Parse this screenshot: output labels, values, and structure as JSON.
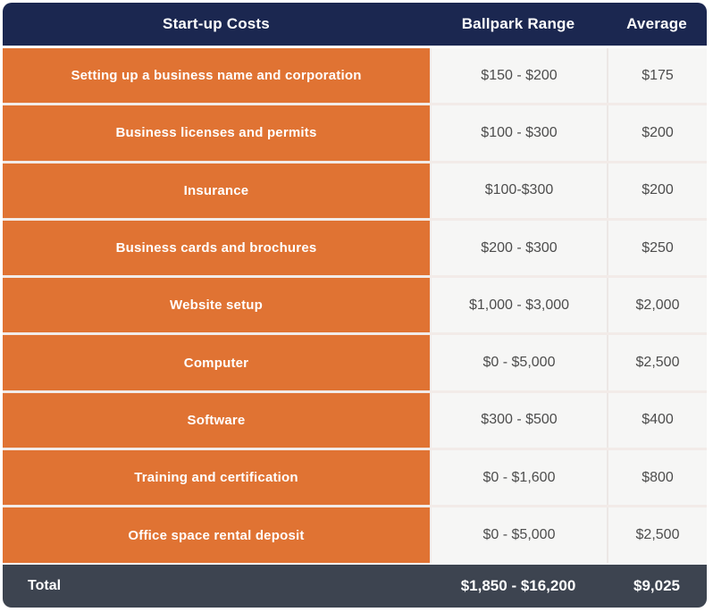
{
  "colors": {
    "header_navy": "#1b2750",
    "row_orange": "#e07333",
    "value_gray": "#f6f6f5",
    "footer_slate": "#3d4450",
    "value_text": "#4d4d4d"
  },
  "table": {
    "header": {
      "col1": "Start-up Costs",
      "col2": "Ballpark Range",
      "col3": "Average"
    },
    "rows": [
      {
        "label": "Setting up a business name and corporation",
        "range": "$150 - $200",
        "average": "$175"
      },
      {
        "label": "Business licenses and permits",
        "range": "$100 - $300",
        "average": "$200"
      },
      {
        "label": "Insurance",
        "range": "$100-$300",
        "average": "$200"
      },
      {
        "label": "Business cards and brochures",
        "range": "$200 - $300",
        "average": "$250"
      },
      {
        "label": "Website setup",
        "range": "$1,000 - $3,000",
        "average": "$2,000"
      },
      {
        "label": "Computer",
        "range": "$0 - $5,000",
        "average": "$2,500"
      },
      {
        "label": "Software",
        "range": "$300 - $500",
        "average": "$400"
      },
      {
        "label": "Training and certification",
        "range": "$0 - $1,600",
        "average": "$800"
      },
      {
        "label": "Office space rental deposit",
        "range": "$0 - $5,000",
        "average": "$2,500"
      }
    ],
    "footer": {
      "label": "Total",
      "range": "$1,850 - $16,200",
      "average": "$9,025"
    }
  },
  "chart_data": {
    "type": "table",
    "title": "Start-up Costs",
    "columns": [
      "Start-up Costs",
      "Ballpark Range",
      "Average"
    ],
    "rows": [
      [
        "Setting up a business name and corporation",
        "$150 - $200",
        "$175"
      ],
      [
        "Business licenses and permits",
        "$100 - $300",
        "$200"
      ],
      [
        "Insurance",
        "$100-$300",
        "$200"
      ],
      [
        "Business cards and brochures",
        "$200 - $300",
        "$250"
      ],
      [
        "Website setup",
        "$1,000 - $3,000",
        "$2,000"
      ],
      [
        "Computer",
        "$0 - $5,000",
        "$2,500"
      ],
      [
        "Software",
        "$300 - $500",
        "$400"
      ],
      [
        "Training and certification",
        "$0 - $1,600",
        "$800"
      ],
      [
        "Office space rental deposit",
        "$0 - $5,000",
        "$2,500"
      ],
      [
        "Total",
        "$1,850 - $16,200",
        "$9,025"
      ]
    ],
    "numeric": {
      "range_low": [
        150,
        100,
        100,
        200,
        1000,
        0,
        300,
        0,
        0
      ],
      "range_high": [
        200,
        300,
        300,
        300,
        3000,
        5000,
        500,
        1600,
        5000
      ],
      "average": [
        175,
        200,
        200,
        250,
        2000,
        2500,
        400,
        800,
        2500
      ],
      "total_range_low": 1850,
      "total_range_high": 16200,
      "total_average": 9025
    }
  }
}
